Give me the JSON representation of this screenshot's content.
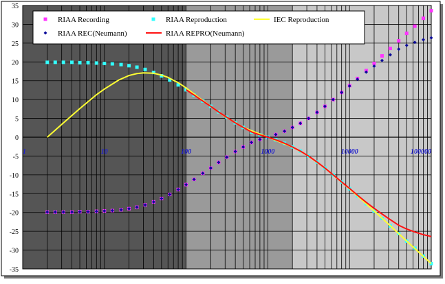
{
  "chart_data": {
    "type": "scatter",
    "title": "",
    "xlabel": "",
    "ylabel": "",
    "x_scale": "log",
    "xlim": [
      1,
      100000
    ],
    "ylim": [
      -35,
      35
    ],
    "x_ticks": [
      1,
      10,
      100,
      1000,
      10000,
      100000
    ],
    "x_tick_labels": [
      "1",
      "10",
      "100",
      "1000",
      "10000",
      "100000"
    ],
    "y_ticks": [
      -35,
      -30,
      -25,
      -20,
      -15,
      -10,
      -5,
      0,
      5,
      10,
      15,
      20,
      25,
      30,
      35
    ],
    "y_tick_labels": [
      "-35",
      "-30",
      "-25",
      "-20",
      "-15",
      "-10",
      "-5",
      "0",
      "5",
      "10",
      "15",
      "20",
      "25",
      "30",
      "35"
    ],
    "legend_placement": "top",
    "grid": true,
    "background_bands": [
      {
        "from": 1,
        "to": 100,
        "color": "#555555"
      },
      {
        "from": 100,
        "to": 2000,
        "color": "#9a9a9a"
      },
      {
        "from": 2000,
        "to": 100000,
        "color": "#c8c8c8"
      }
    ],
    "series": [
      {
        "name": "RIAA Recording",
        "style": "markers",
        "marker": "square",
        "color": "#ff33ff",
        "x": [
          2,
          2.5,
          3.15,
          4,
          5,
          6.3,
          8,
          10,
          12.5,
          16,
          20,
          25,
          31.5,
          40,
          50,
          63,
          80,
          100,
          125,
          160,
          200,
          250,
          315,
          400,
          500,
          630,
          800,
          1000,
          1250,
          1600,
          2000,
          2500,
          3150,
          4000,
          5000,
          6300,
          8000,
          10000,
          12500,
          16000,
          20000,
          25000,
          31500,
          40000,
          50000,
          63000,
          80000,
          100000
        ],
        "y": [
          -19.9,
          -19.9,
          -19.9,
          -19.9,
          -19.8,
          -19.8,
          -19.7,
          -19.6,
          -19.5,
          -19.3,
          -19.0,
          -18.6,
          -18.0,
          -17.2,
          -16.3,
          -15.2,
          -13.9,
          -12.6,
          -11.2,
          -9.6,
          -8.2,
          -6.7,
          -5.3,
          -3.8,
          -2.6,
          -1.4,
          -0.6,
          0.0,
          0.7,
          1.6,
          2.6,
          3.7,
          5.0,
          6.6,
          8.2,
          10.0,
          11.9,
          13.7,
          15.6,
          17.7,
          19.6,
          21.6,
          23.6,
          25.6,
          27.6,
          29.5,
          31.6,
          33.6
        ]
      },
      {
        "name": "RIAA Reproduction",
        "style": "markers",
        "marker": "square",
        "color": "#33ffff",
        "x": [
          2,
          2.5,
          3.15,
          4,
          5,
          6.3,
          8,
          10,
          12.5,
          16,
          20,
          25,
          31.5,
          40,
          50,
          63,
          80,
          100,
          125,
          160,
          200,
          250,
          315,
          400,
          500,
          630,
          800,
          1000,
          1250,
          1600,
          2000,
          2500,
          3150,
          4000,
          5000,
          6300,
          8000,
          10000,
          12500,
          16000,
          20000,
          25000,
          31500,
          40000,
          50000,
          63000,
          80000,
          100000
        ],
        "y": [
          19.9,
          19.9,
          19.9,
          19.9,
          19.8,
          19.8,
          19.7,
          19.6,
          19.5,
          19.3,
          19.0,
          18.6,
          18.0,
          17.2,
          16.3,
          15.2,
          13.9,
          12.6,
          11.2,
          9.6,
          8.2,
          6.7,
          5.3,
          3.8,
          2.6,
          1.4,
          0.6,
          0.0,
          -0.7,
          -1.6,
          -2.6,
          -3.7,
          -5.0,
          -6.6,
          -8.2,
          -10.0,
          -11.9,
          -13.7,
          -15.6,
          -17.7,
          -19.6,
          -21.6,
          -23.6,
          -25.6,
          -27.6,
          -29.5,
          -31.6,
          -33.6
        ]
      },
      {
        "name": "IEC Reproduction",
        "style": "line",
        "color": "#ffff33",
        "x": [
          2,
          3,
          5,
          8,
          10,
          15,
          20,
          25,
          30,
          40,
          50,
          60,
          70,
          80,
          100,
          150,
          200,
          300,
          500,
          1000,
          2000,
          3000,
          5000,
          10000,
          20000,
          30000,
          50000,
          100000
        ],
        "y": [
          0.0,
          3.4,
          7.6,
          11.3,
          12.8,
          15.2,
          16.4,
          16.9,
          17.1,
          17.0,
          16.5,
          15.9,
          15.1,
          14.5,
          13.1,
          10.2,
          8.2,
          5.5,
          2.6,
          0.0,
          -2.6,
          -4.7,
          -8.2,
          -13.7,
          -19.6,
          -23.1,
          -27.6,
          -33.6
        ]
      },
      {
        "name": "RIAA REC(Neumann)",
        "style": "markers",
        "marker": "diamond",
        "color": "#0a0a99",
        "x": [
          2,
          2.5,
          3.15,
          4,
          5,
          6.3,
          8,
          10,
          12.5,
          16,
          20,
          25,
          31.5,
          40,
          50,
          63,
          80,
          100,
          125,
          160,
          200,
          250,
          315,
          400,
          500,
          630,
          800,
          1000,
          1250,
          1600,
          2000,
          2500,
          3150,
          4000,
          5000,
          6300,
          8000,
          10000,
          12500,
          16000,
          20000,
          25000,
          31500,
          40000,
          50000,
          63000,
          80000,
          100000
        ],
        "y": [
          -19.9,
          -19.9,
          -19.9,
          -19.9,
          -19.8,
          -19.8,
          -19.7,
          -19.6,
          -19.5,
          -19.3,
          -19.0,
          -18.6,
          -18.0,
          -17.2,
          -16.3,
          -15.2,
          -13.9,
          -12.6,
          -11.2,
          -9.6,
          -8.2,
          -6.7,
          -5.3,
          -3.8,
          -2.6,
          -1.4,
          -0.6,
          0.0,
          0.7,
          1.6,
          2.6,
          3.7,
          5.0,
          6.6,
          8.2,
          10.0,
          11.9,
          13.6,
          15.4,
          17.3,
          18.9,
          20.4,
          21.9,
          23.4,
          24.4,
          25.2,
          25.9,
          26.4
        ]
      },
      {
        "name": "RIAA REPRO(Neumann)",
        "style": "line",
        "color": "#ff1111",
        "x": [
          100,
          125,
          160,
          200,
          250,
          315,
          400,
          500,
          630,
          800,
          1000,
          1250,
          1600,
          2000,
          2500,
          3150,
          4000,
          5000,
          6300,
          8000,
          10000,
          12500,
          16000,
          20000,
          25000,
          31500,
          40000,
          50000,
          63000,
          80000,
          100000
        ],
        "y": [
          12.6,
          11.2,
          9.6,
          8.2,
          6.7,
          5.3,
          3.8,
          2.6,
          1.4,
          0.6,
          0.0,
          -0.7,
          -1.6,
          -2.6,
          -3.7,
          -5.0,
          -6.6,
          -8.2,
          -10.0,
          -11.9,
          -13.6,
          -15.4,
          -17.3,
          -18.9,
          -20.4,
          -21.9,
          -23.4,
          -24.4,
          -25.2,
          -25.9,
          -26.4
        ]
      }
    ]
  }
}
